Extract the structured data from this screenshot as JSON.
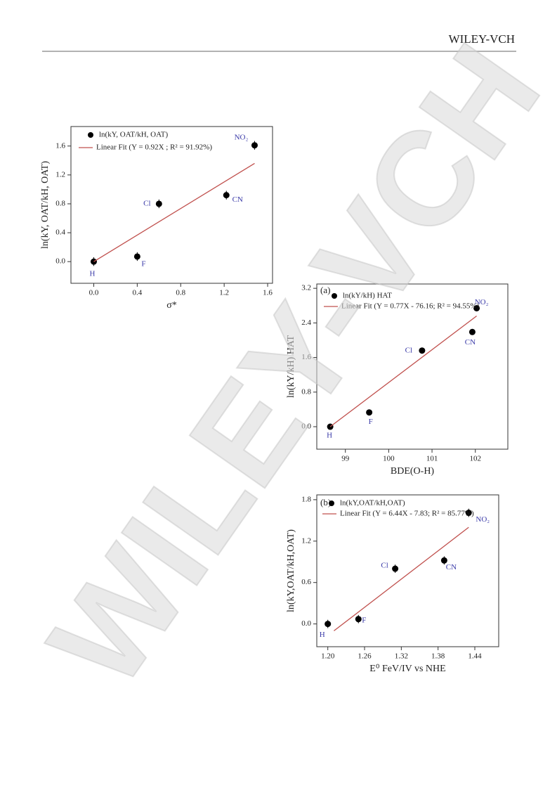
{
  "header": {
    "publisher": "WILEY-VCH"
  },
  "watermark": "WILEY-VCH",
  "chart_data": [
    {
      "type": "scatter",
      "xlabel": "σ*",
      "ylabel": "ln(kY, OAT/kH, OAT)",
      "xlim": [
        -0.21,
        1.645
      ],
      "ylim": [
        -0.3,
        1.87
      ],
      "xticks": [
        {
          "value": 0,
          "label": "0.0"
        },
        0.4,
        0.8,
        1.2,
        1.6
      ],
      "yticks": [
        {
          "value": 0,
          "label": "0.0"
        },
        0.4,
        0.8,
        1.2,
        1.6
      ],
      "series": [
        {
          "name": "ln(kY, OAT/kH, OAT)",
          "color": "#000000",
          "x": [
            0.0,
            0.4,
            0.6,
            1.22,
            1.48
          ],
          "values": [
            0.0,
            0.07,
            0.8,
            0.92,
            1.61
          ],
          "errors": [
            0.06,
            0.06,
            0.06,
            0.06,
            0.06
          ],
          "point_labels": [
            "H",
            "F",
            "Cl",
            "CN",
            "NO₂"
          ]
        },
        {
          "name": "Linear Fit (Y = 0.92X ; R² = 91.92%)",
          "color": "#c0504d",
          "x": [
            0.0,
            1.48
          ],
          "values": [
            0.0,
            1.36
          ]
        }
      ]
    },
    {
      "type": "scatter",
      "panel": "(a)",
      "xlabel": "BDE(O-H)",
      "ylabel": "ln(kY/kH) HAT",
      "xlim": [
        98.34,
        102.75
      ],
      "ylim": [
        -0.52,
        3.3
      ],
      "xticks": [
        99,
        100,
        101,
        102
      ],
      "yticks": [
        {
          "value": 0,
          "label": "0.0"
        },
        0.8,
        1.6,
        2.4,
        3.2
      ],
      "series": [
        {
          "name": "ln(kY/kH) HAT",
          "color": "#000000",
          "x": [
            98.65,
            99.55,
            100.77,
            101.93,
            102.03
          ],
          "values": [
            0.0,
            0.33,
            1.76,
            2.19,
            2.74
          ],
          "point_labels": [
            "H",
            "F",
            "Cl",
            "CN",
            "NO₂"
          ]
        },
        {
          "name": "Linear Fit (Y = 0.77X - 76.16; R² = 94.55%)",
          "color": "#c0504d",
          "x": [
            98.65,
            102.03
          ],
          "values": [
            0.0,
            2.56
          ]
        }
      ]
    },
    {
      "type": "scatter",
      "panel": "(b)",
      "xlabel": "E⁰ FeV/IV vs NHE",
      "ylabel": "ln(kY,OAT/kH,OAT)",
      "xlim": [
        1.182,
        1.479
      ],
      "ylim": [
        -0.33,
        1.87
      ],
      "xticks": [
        {
          "value": 1.2,
          "label": "1.20"
        },
        1.26,
        1.32,
        1.38,
        1.44
      ],
      "yticks": [
        {
          "value": 0,
          "label": "0.0"
        },
        0.6,
        1.2,
        1.8
      ],
      "series": [
        {
          "name": "ln(kY,OAT/kH,OAT)",
          "color": "#000000",
          "x": [
            1.2,
            1.25,
            1.31,
            1.39,
            1.43
          ],
          "values": [
            0.0,
            0.07,
            0.8,
            0.92,
            1.61
          ],
          "errors": [
            0.06,
            0.06,
            0.06,
            0.06,
            0.06
          ],
          "point_labels": [
            "H",
            "F",
            "Cl",
            "CN",
            "NO₂"
          ]
        },
        {
          "name": "Linear Fit (Y = 6.44X - 7.83; R² = 85.77%)",
          "color": "#c0504d",
          "x": [
            1.21,
            1.43
          ],
          "values": [
            -0.1,
            1.4
          ]
        }
      ]
    }
  ]
}
